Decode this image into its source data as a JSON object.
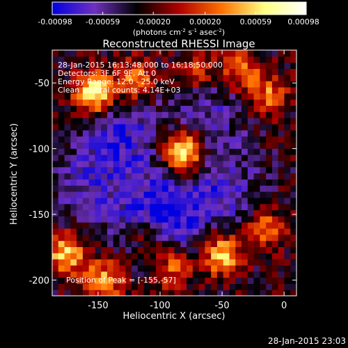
{
  "chart_data": {
    "type": "heatmap",
    "title": "Reconstructed RHESSI Image",
    "xlabel": "Heliocentric X (arcsec)",
    "ylabel": "Heliocentric Y (arcsec)",
    "xlim": [
      -187,
      10
    ],
    "ylim": [
      -212,
      -25
    ],
    "xticks": [
      -150,
      -100,
      -50,
      0
    ],
    "yticks": [
      -200,
      -150,
      -100,
      -50
    ],
    "annotations": [
      "28-Jan-2015 16:13:48.000 to 16:18:50.000",
      "Detectors: 3F 6F 9F, Att 0",
      "Energy Range: 12.0 - 25.0 keV",
      "Clean     Total counts: 4.14E+03"
    ],
    "peak_label": "Position of Peak = [-155,-57]",
    "peak_position": [
      -155,
      -57
    ],
    "footer_timestamp": "28-Jan-2015 23:03",
    "colorbar": {
      "ticks": [
        "-0.00098",
        "-0.00059",
        "-0.00020",
        "0.00020",
        "0.00059",
        "0.00098"
      ],
      "tick_values": [
        -0.00098,
        -0.00059,
        -0.0002,
        0.0002,
        0.00059,
        0.00098
      ],
      "range": [
        -0.00098,
        0.00098
      ],
      "units": "(photons cm<sup>-2</sup> s<sup>-1</sup> asec<sup>-2</sup>)",
      "units_parts": [
        "(photons cm",
        "-2",
        " s",
        "-1",
        " asec",
        "-2",
        ")"
      ],
      "colors": [
        "#0000e0",
        "#7030c0",
        "#000000",
        "#b00000",
        "#ff7000",
        "#ffff80",
        "#ffffff"
      ]
    },
    "sources": [
      {
        "x": -82,
        "y": -103,
        "strength": 0.00098
      },
      {
        "x": -153,
        "y": -58,
        "strength": 0.0009
      },
      {
        "x": -120,
        "y": -48,
        "strength": 0.0006
      },
      {
        "x": -175,
        "y": -180,
        "strength": 0.00072
      },
      {
        "x": -145,
        "y": -200,
        "strength": 0.0006
      },
      {
        "x": -50,
        "y": -180,
        "strength": 0.0007
      },
      {
        "x": -15,
        "y": -160,
        "strength": 0.00045
      },
      {
        "x": -12,
        "y": -60,
        "strength": 0.0005
      },
      {
        "x": -35,
        "y": -40,
        "strength": 0.00055
      },
      {
        "x": -70,
        "y": -40,
        "strength": 0.0004
      },
      {
        "x": -110,
        "y": -165,
        "strength": 0.0004
      },
      {
        "x": -90,
        "y": -190,
        "strength": 0.0005
      }
    ],
    "troughs": [
      {
        "x": -130,
        "y": -90,
        "strength": -0.0006
      },
      {
        "x": -100,
        "y": -150,
        "strength": -0.0009
      },
      {
        "x": -50,
        "y": -130,
        "strength": -0.0005
      },
      {
        "x": -160,
        "y": -130,
        "strength": -0.00045
      },
      {
        "x": -60,
        "y": -70,
        "strength": -0.0004
      }
    ]
  }
}
